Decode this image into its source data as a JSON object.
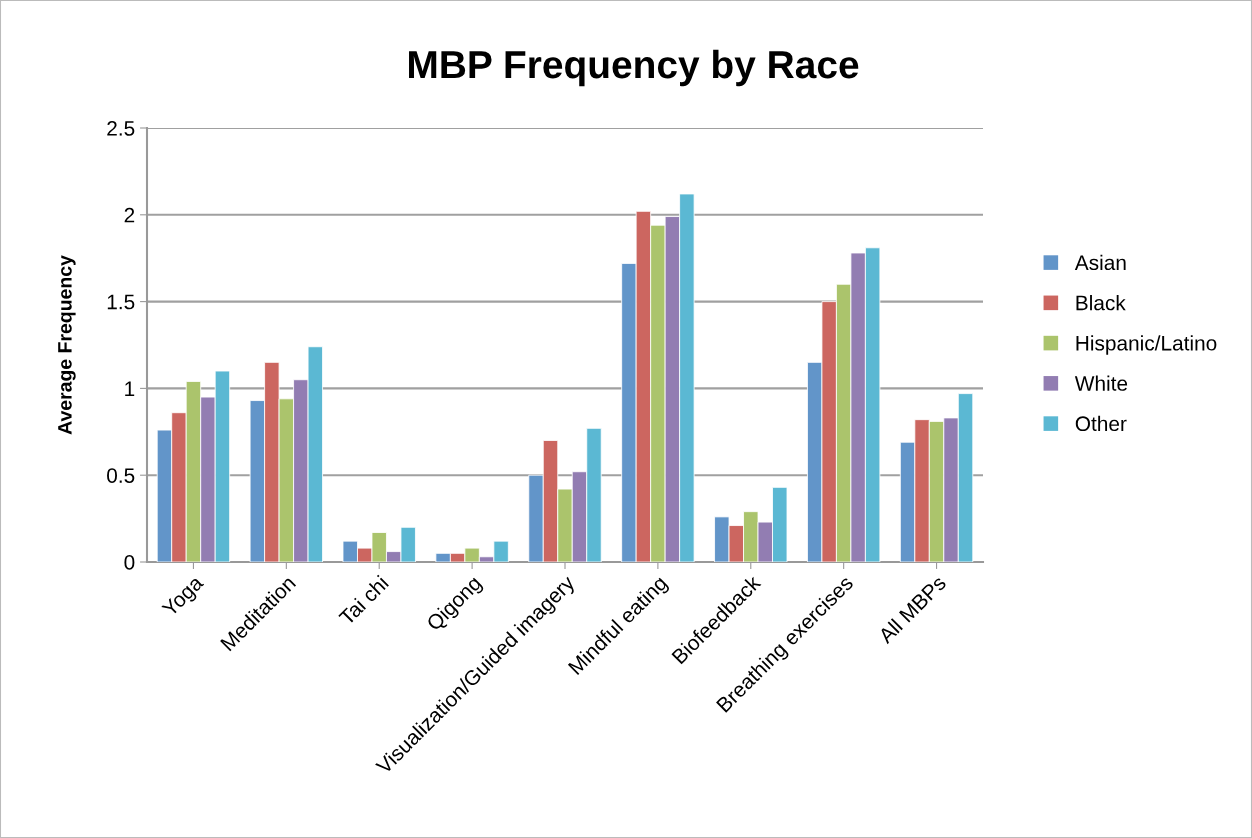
{
  "chart_data": {
    "type": "bar",
    "title": "MBP Frequency by Race",
    "ylabel": "Average Frequency",
    "categories": [
      "Yoga",
      "Meditation",
      "Tai chi",
      "Qigong",
      "Visualization/Guided imagery",
      "Mindful eating",
      "Biofeedback",
      "Breathing exercises",
      "All MBPs"
    ],
    "series": [
      {
        "name": "Asian",
        "color": "#6295c9",
        "values": [
          0.76,
          0.93,
          0.12,
          0.05,
          0.5,
          1.72,
          0.26,
          1.15,
          0.69
        ]
      },
      {
        "name": "Black",
        "color": "#cc6660",
        "values": [
          0.86,
          1.15,
          0.08,
          0.05,
          0.7,
          2.02,
          0.21,
          1.5,
          0.82
        ]
      },
      {
        "name": "Hispanic/Latino",
        "color": "#abc46c",
        "values": [
          1.04,
          0.94,
          0.17,
          0.08,
          0.42,
          1.94,
          0.29,
          1.6,
          0.81
        ]
      },
      {
        "name": "White",
        "color": "#927db2",
        "values": [
          0.95,
          1.05,
          0.06,
          0.03,
          0.52,
          1.99,
          0.23,
          1.78,
          0.83
        ]
      },
      {
        "name": "Other",
        "color": "#5bb8d3",
        "values": [
          1.1,
          1.24,
          0.2,
          0.12,
          0.77,
          2.12,
          0.43,
          1.81,
          0.97
        ]
      }
    ],
    "ylim": [
      0,
      2.5
    ],
    "yticks": [
      0,
      {
        "value": 0.5,
        "label": "0.5"
      },
      1,
      {
        "value": 1.5,
        "label": "1.5"
      },
      2,
      {
        "value": 2.5,
        "label": "2.5"
      }
    ],
    "grid": "y",
    "legend": "right"
  }
}
